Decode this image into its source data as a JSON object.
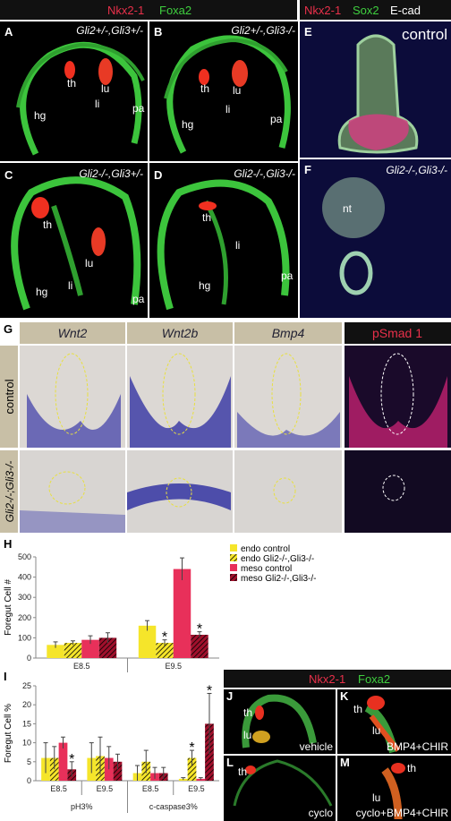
{
  "header_top": {
    "left": [
      "Nkx2-1",
      "Foxa2"
    ],
    "right": [
      "Nkx2-1",
      "Sox2",
      "E-cad"
    ]
  },
  "panels": [
    {
      "letter": "A",
      "genotype": "Gli2+/-,Gli3+/-",
      "labels": [
        "th",
        "lu",
        "li",
        "hg",
        "pa"
      ]
    },
    {
      "letter": "B",
      "genotype": "Gli2+/-,Gli3-/-",
      "labels": [
        "th",
        "lu",
        "li",
        "hg",
        "pa"
      ]
    },
    {
      "letter": "E",
      "genotype": "control"
    },
    {
      "letter": "C",
      "genotype": "Gli2-/-,Gli3+/-",
      "labels": [
        "th",
        "lu",
        "li",
        "hg",
        "pa"
      ]
    },
    {
      "letter": "D",
      "genotype": "Gli2-/-,Gli3-/-",
      "labels": [
        "th",
        "li",
        "hg",
        "pa"
      ]
    },
    {
      "letter": "F",
      "genotype": "Gli2-/-,Gli3-/-",
      "labels": [
        "nt"
      ]
    }
  ],
  "section_g": {
    "letter": "G",
    "columns": [
      "Wnt2",
      "Wnt2b",
      "Bmp4",
      "pSmad 1"
    ],
    "rows": [
      "control",
      "Gli2-/-;Gli3-/-"
    ]
  },
  "section_jm": {
    "header": [
      "Nkx2-1",
      "Foxa2"
    ],
    "panels": [
      {
        "letter": "J",
        "labels": [
          "th",
          "lu"
        ],
        "treatment": "vehicle"
      },
      {
        "letter": "K",
        "labels": [
          "th",
          "lu"
        ],
        "treatment": "BMP4+CHIR"
      },
      {
        "letter": "L",
        "labels": [
          "th"
        ],
        "treatment": "cyclo"
      },
      {
        "letter": "M",
        "labels": [
          "th",
          "lu"
        ],
        "treatment": "cyclo+BMP4+CHIR"
      }
    ]
  },
  "chart_data": [
    {
      "type": "bar",
      "letter": "H",
      "y_label": "Foregut Cell #",
      "categories": [
        "E8.5",
        "E9.5"
      ],
      "ylim": [
        0,
        500
      ],
      "yticks": [
        0,
        100,
        200,
        300,
        400,
        500
      ],
      "legend": "right",
      "series": [
        {
          "name": "endo control",
          "color": "#f5e52a",
          "hatch": false,
          "values": [
            65,
            160
          ],
          "errors": [
            15,
            25
          ]
        },
        {
          "name": "endo Gli2-/-,Gli3-/-",
          "color": "#f5e52a",
          "hatch": true,
          "values": [
            75,
            75
          ],
          "errors": [
            10,
            15
          ]
        },
        {
          "name": "meso control",
          "color": "#e8305a",
          "hatch": false,
          "values": [
            90,
            440
          ],
          "errors": [
            20,
            55
          ]
        },
        {
          "name": "meso Gli2-/-,Gli3-/-",
          "color": "#a0102c",
          "hatch": true,
          "values": [
            100,
            115
          ],
          "errors": [
            25,
            15
          ]
        }
      ],
      "annotations": [
        {
          "text": "*",
          "series": 1,
          "category": 1
        },
        {
          "text": "*",
          "series": 3,
          "category": 1
        }
      ]
    },
    {
      "type": "bar",
      "letter": "I",
      "y_label": "Foregut Cell %",
      "categories": [
        "E8.5",
        "E9.5",
        "E8.5",
        "E9.5"
      ],
      "groups": [
        "pH3%",
        "c-caspase3%"
      ],
      "ylim": [
        0,
        25
      ],
      "yticks": [
        0,
        5,
        10,
        15,
        20,
        25
      ],
      "series": [
        {
          "color": "#f5e52a",
          "hatch": false,
          "values": [
            6,
            6,
            2,
            0.5
          ],
          "errors": [
            4,
            4,
            2,
            0.3
          ]
        },
        {
          "color": "#f5e52a",
          "hatch": true,
          "values": [
            6,
            6.5,
            5,
            6
          ],
          "errors": [
            3,
            5,
            3,
            2
          ]
        },
        {
          "color": "#e8305a",
          "hatch": false,
          "values": [
            10,
            6,
            2,
            0.5
          ],
          "errors": [
            1.5,
            3,
            1.5,
            0.3
          ]
        },
        {
          "color": "#a0102c",
          "hatch": true,
          "values": [
            3,
            5,
            2,
            15
          ],
          "errors": [
            2,
            2,
            1.5,
            8
          ]
        }
      ],
      "annotations": [
        {
          "text": "*",
          "series": 3,
          "category": 0
        },
        {
          "text": "*",
          "series": 1,
          "category": 3
        },
        {
          "text": "*",
          "series": 3,
          "category": 3
        }
      ]
    }
  ]
}
